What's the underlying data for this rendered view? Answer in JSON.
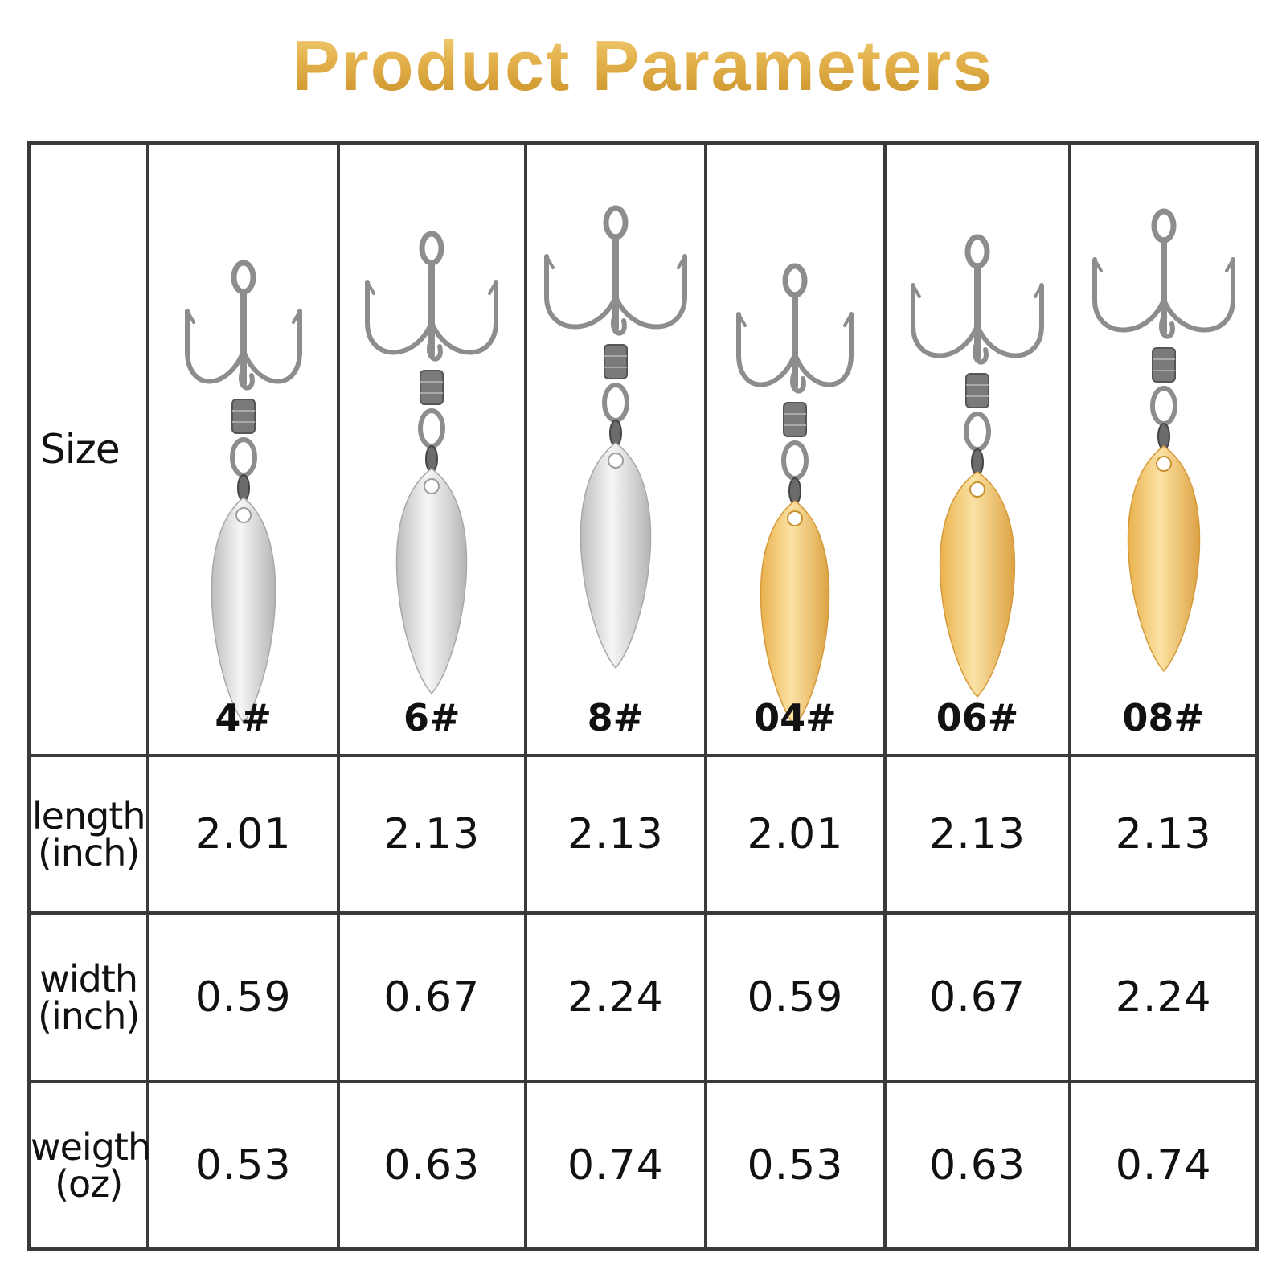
{
  "title": "Product Parameters",
  "row_labels": {
    "size": "Size",
    "length": {
      "line1": "length",
      "line2": "(inch)"
    },
    "width": {
      "line1": "width",
      "line2": "(inch)"
    },
    "weight": {
      "line1": "weigth",
      "line2": "(oz)"
    }
  },
  "colors": {
    "title_gold": "#d9a63e",
    "blade_silver": "#d8d8d8",
    "blade_gold": "#f1c46a",
    "grid_line": "#3a3a3a"
  },
  "products": [
    {
      "size": "4#",
      "finish": "silver",
      "length": "2.01",
      "width": "0.59",
      "weight": "0.53"
    },
    {
      "size": "6#",
      "finish": "silver",
      "length": "2.13",
      "width": "0.67",
      "weight": "0.63"
    },
    {
      "size": "8#",
      "finish": "silver",
      "length": "2.13",
      "width": "2.24",
      "weight": "0.74"
    },
    {
      "size": "04#",
      "finish": "gold",
      "length": "2.01",
      "width": "0.59",
      "weight": "0.53"
    },
    {
      "size": "06#",
      "finish": "gold",
      "length": "2.13",
      "width": "0.67",
      "weight": "0.63"
    },
    {
      "size": "08#",
      "finish": "gold",
      "length": "2.13",
      "width": "2.24",
      "weight": "0.74"
    }
  ]
}
